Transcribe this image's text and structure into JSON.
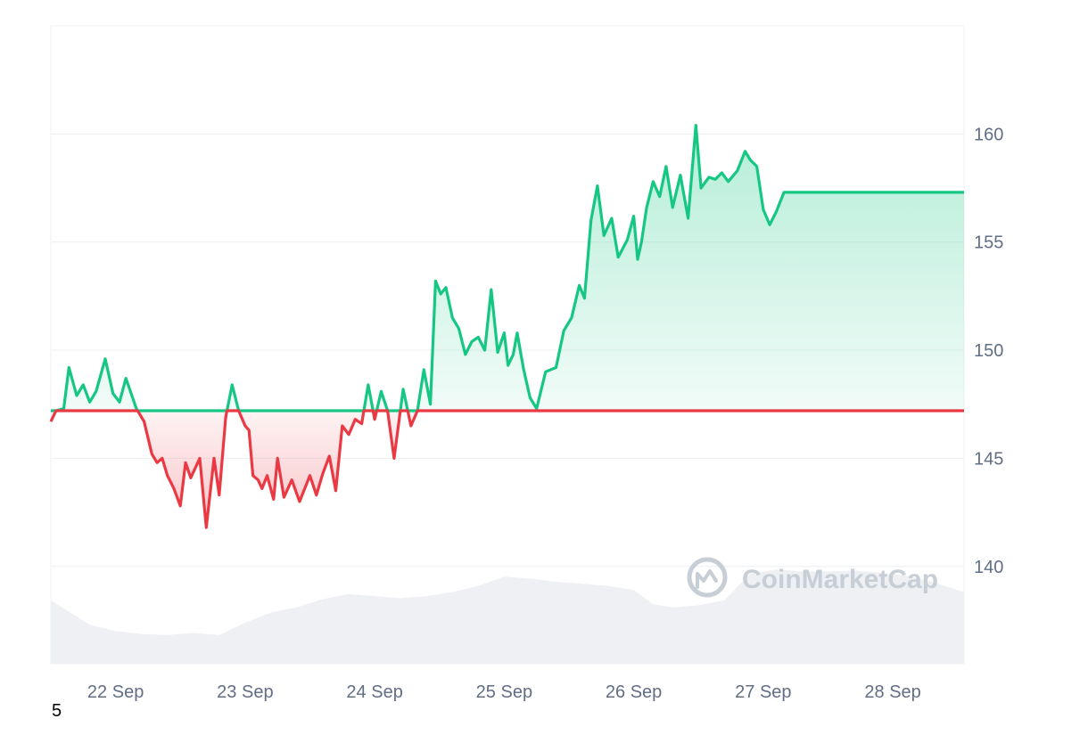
{
  "page_footnote": "5",
  "watermark": {
    "text": "CoinMarketCap",
    "icon": "coinmarketcap-logo-icon"
  },
  "colors": {
    "up_line": "#16c784",
    "down_line": "#ea3943",
    "volume_fill": "#eef0f3",
    "grid": "#eff2f5",
    "baseline": "#7a8492",
    "tick_text": "#616e85"
  },
  "chart_data": {
    "type": "area",
    "title": "",
    "xlabel": "",
    "ylabel": "",
    "y_axis_position": "right",
    "grid": "horizontal",
    "legend": "none",
    "ylim": [
      135.5,
      165
    ],
    "y_ticks": [
      140,
      145,
      150,
      155,
      160
    ],
    "x_ticks": [
      {
        "x": 0.5,
        "label": "22 Sep"
      },
      {
        "x": 1.5,
        "label": "23 Sep"
      },
      {
        "x": 2.5,
        "label": "24 Sep"
      },
      {
        "x": 3.5,
        "label": "25 Sep"
      },
      {
        "x": 4.5,
        "label": "26 Sep"
      },
      {
        "x": 5.5,
        "label": "27 Sep"
      },
      {
        "x": 6.5,
        "label": "28 Sep"
      }
    ],
    "xlim": [
      0,
      7.05
    ],
    "reference_price": 147.2,
    "price": {
      "x": [
        0,
        0.04,
        0.1,
        0.14,
        0.2,
        0.25,
        0.3,
        0.35,
        0.42,
        0.48,
        0.53,
        0.58,
        0.66,
        0.72,
        0.78,
        0.82,
        0.86,
        0.9,
        0.95,
        1.0,
        1.04,
        1.08,
        1.15,
        1.2,
        1.26,
        1.3,
        1.35,
        1.4,
        1.45,
        1.5,
        1.53,
        1.56,
        1.6,
        1.63,
        1.67,
        1.72,
        1.75,
        1.8,
        1.86,
        1.92,
        2.0,
        2.05,
        2.1,
        2.15,
        2.2,
        2.25,
        2.3,
        2.35,
        2.4,
        2.45,
        2.5,
        2.55,
        2.6,
        2.65,
        2.72,
        2.78,
        2.83,
        2.88,
        2.93,
        2.97,
        3.01,
        3.05,
        3.1,
        3.15,
        3.2,
        3.25,
        3.3,
        3.35,
        3.4,
        3.45,
        3.5,
        3.53,
        3.57,
        3.6,
        3.65,
        3.7,
        3.75,
        3.82,
        3.9,
        3.96,
        4.02,
        4.08,
        4.12,
        4.17,
        4.22,
        4.27,
        4.33,
        4.38,
        4.45,
        4.5,
        4.53,
        4.56,
        4.6,
        4.65,
        4.7,
        4.75,
        4.8,
        4.86,
        4.92,
        4.98,
        5.02,
        5.08,
        5.13,
        5.18,
        5.23,
        5.3,
        5.36,
        5.4,
        5.45,
        5.5,
        5.55,
        5.6,
        5.66,
        5.72,
        5.78,
        5.83,
        5.88,
        5.94,
        6.0,
        6.05,
        6.1,
        6.15,
        6.2,
        6.25,
        6.3,
        6.36,
        6.42,
        6.48,
        6.53,
        6.58,
        6.63,
        6.68,
        6.72,
        6.76,
        6.8,
        6.85,
        6.9,
        6.95,
        7.0,
        7.03,
        7.05
      ],
      "y": [
        146.7,
        147.2,
        147.3,
        149.2,
        147.9,
        148.4,
        147.6,
        148.1,
        149.6,
        148.0,
        147.6,
        148.7,
        147.3,
        146.7,
        145.2,
        144.8,
        145.0,
        144.2,
        143.6,
        142.8,
        144.8,
        144.1,
        145.0,
        141.8,
        145.0,
        143.3,
        146.9,
        148.4,
        147.2,
        146.5,
        146.3,
        144.2,
        144.0,
        143.6,
        144.2,
        143.1,
        145.0,
        143.2,
        144.0,
        143.0,
        144.2,
        143.3,
        144.3,
        145.1,
        143.5,
        146.5,
        146.1,
        146.8,
        146.6,
        148.4,
        146.8,
        148.1,
        147.2,
        145.0,
        148.2,
        146.5,
        147.2,
        149.1,
        147.5,
        153.2,
        152.6,
        152.9,
        151.5,
        151.0,
        149.8,
        150.4,
        150.6,
        150.0,
        152.8,
        149.9,
        150.8,
        149.3,
        149.8,
        150.8,
        149.1,
        147.8,
        147.3,
        149.0,
        149.2,
        150.9,
        151.5,
        153.0,
        152.4,
        156.0,
        157.6,
        155.3,
        156.1,
        154.3,
        155.1,
        156.2,
        154.2,
        155.0,
        156.6,
        157.8,
        157.1,
        158.5,
        156.6,
        158.1,
        156.1,
        160.4,
        157.5,
        158.0,
        157.9,
        158.2,
        157.8,
        158.3,
        159.2,
        158.8,
        158.5,
        156.5,
        155.8,
        156.4,
        157.3,
        157.3,
        157.3,
        157.3,
        157.3,
        157.3,
        157.3,
        157.3,
        157.3,
        157.3,
        157.3,
        157.3,
        157.3,
        157.3,
        157.3,
        157.3,
        157.3,
        157.3,
        157.3,
        157.3,
        157.3,
        157.3,
        157.3,
        157.3,
        157.3,
        157.3,
        157.3,
        157.3,
        157.3
      ]
    },
    "volume": {
      "x": [
        0,
        0.15,
        0.3,
        0.5,
        0.7,
        0.9,
        1.1,
        1.3,
        1.5,
        1.7,
        1.9,
        2.1,
        2.3,
        2.5,
        2.7,
        2.9,
        3.1,
        3.3,
        3.5,
        3.7,
        3.9,
        4.1,
        4.3,
        4.5,
        4.65,
        4.8,
        5.0,
        5.2,
        5.4,
        5.6,
        5.8,
        6.0,
        6.2,
        6.4,
        6.6,
        6.8,
        7.05
      ],
      "y": [
        0.62,
        0.5,
        0.38,
        0.32,
        0.29,
        0.28,
        0.3,
        0.28,
        0.4,
        0.5,
        0.55,
        0.63,
        0.68,
        0.66,
        0.64,
        0.66,
        0.7,
        0.76,
        0.85,
        0.83,
        0.8,
        0.78,
        0.76,
        0.72,
        0.58,
        0.55,
        0.57,
        0.62,
        0.88,
        0.92,
        0.9,
        0.9,
        0.91,
        0.89,
        0.86,
        0.8,
        0.7
      ]
    }
  }
}
